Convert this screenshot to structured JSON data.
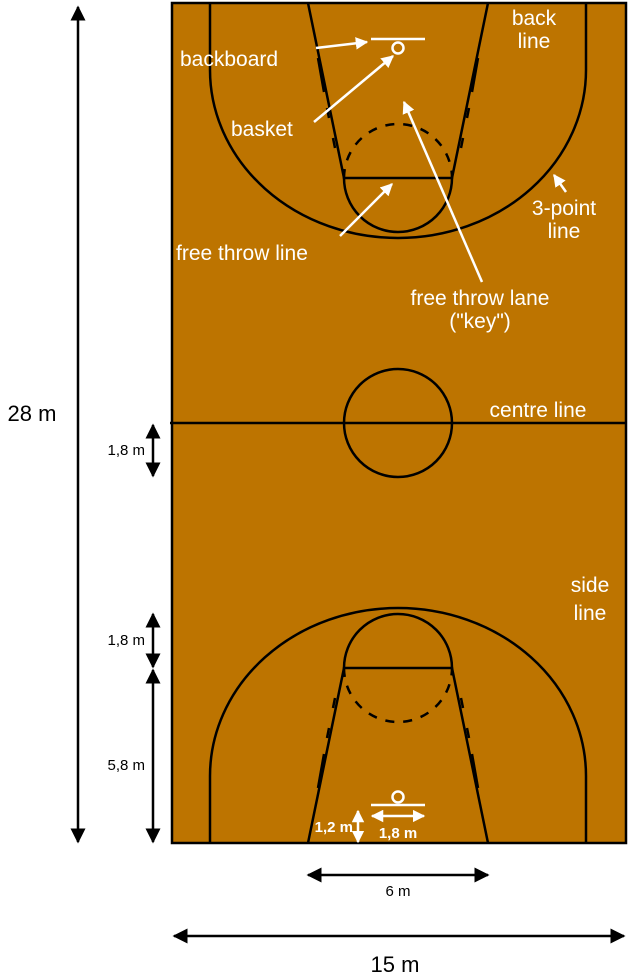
{
  "colors": {
    "court": "#bd7400",
    "court_lines": "#000000",
    "labels": "#ffffff",
    "dimensions": "#000000"
  },
  "labels": {
    "backboard": "backboard",
    "basket": "basket",
    "back_line_1": "back",
    "back_line_2": "line",
    "three_point_1": "3-point",
    "three_point_2": "line",
    "free_throw_line": "free throw line",
    "free_throw_lane_1": "free throw lane",
    "free_throw_lane_2": "(\"key\")",
    "centre_line": "centre line",
    "side_line_1": "side",
    "side_line_2": "line"
  },
  "dimensions": {
    "length": "28 m",
    "width": "15 m",
    "lane_width": "6 m",
    "circle_radius": "1,8 m",
    "ft_circle_radius": "1,8 m",
    "ft_distance": "5,8 m",
    "backboard_offset": "1,2 m",
    "backboard_width": "1,8 m"
  }
}
